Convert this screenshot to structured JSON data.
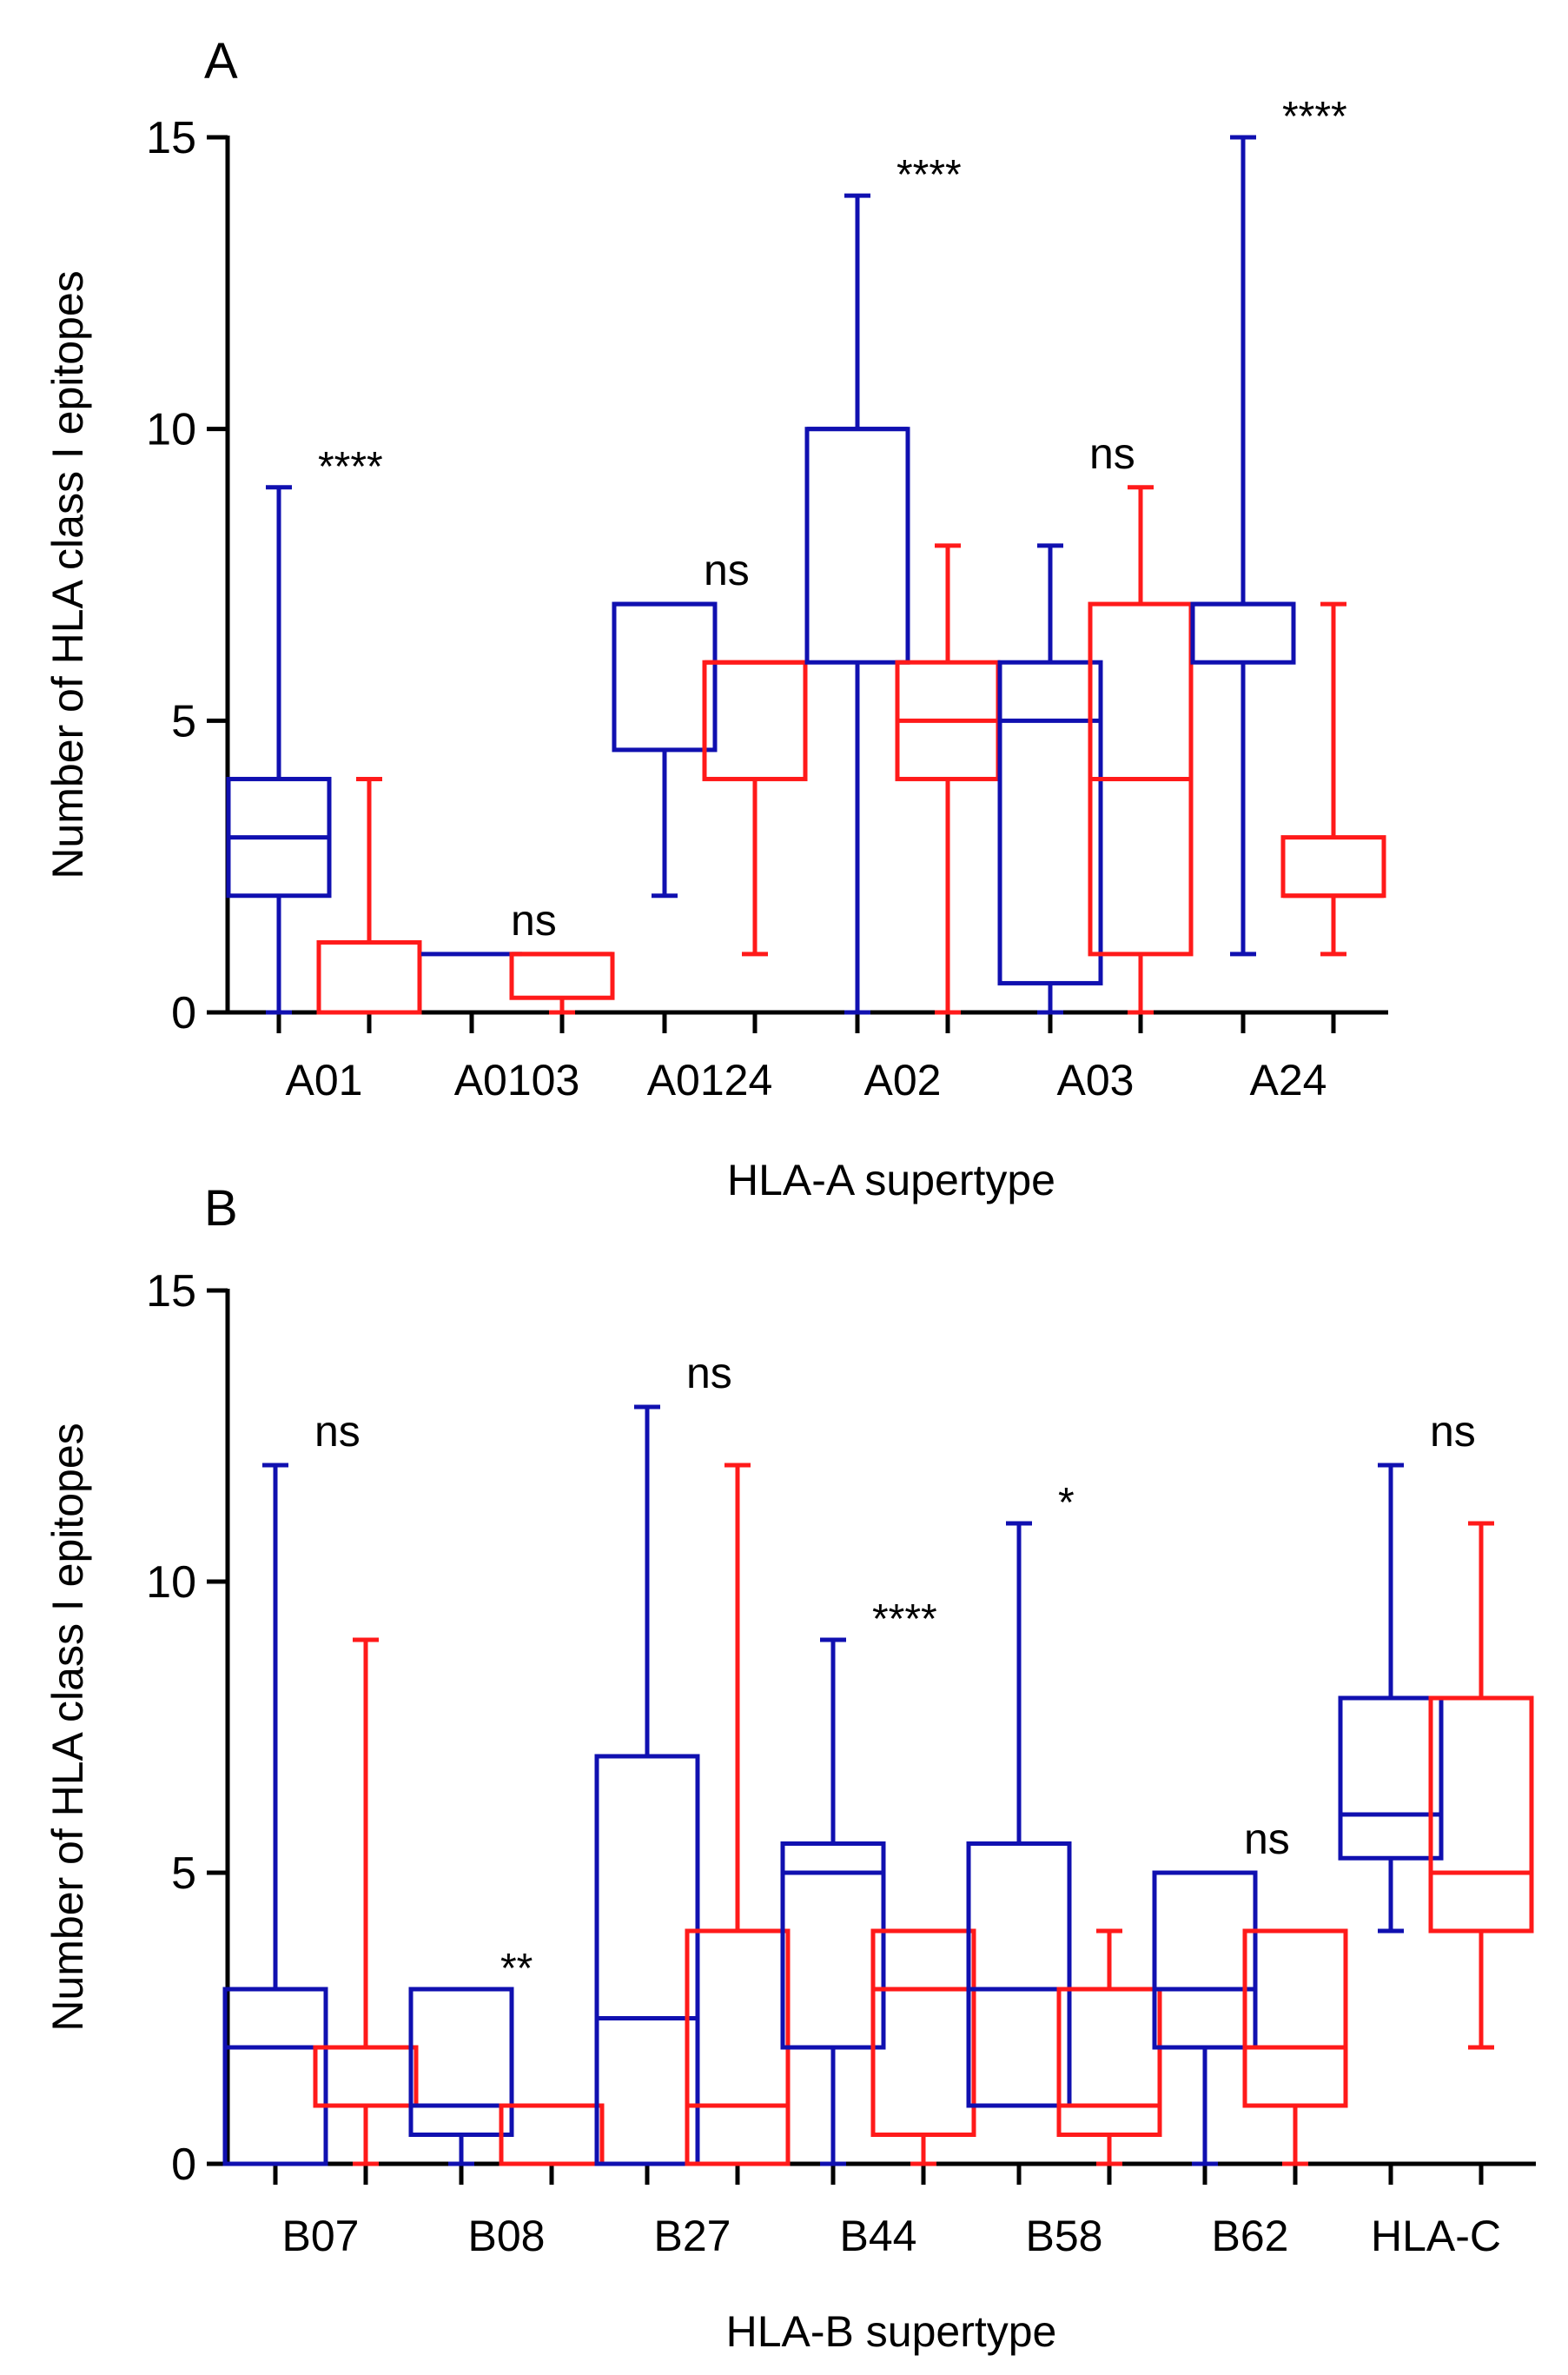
{
  "colors": {
    "group1": "#1010b0",
    "group2": "#ff1a1a",
    "axis": "#000000"
  },
  "chart_data": [
    {
      "type": "box",
      "panel_label": "A",
      "xlabel": "HLA-A supertype",
      "ylabel": "Number of HLA class I epitopes",
      "ylim": [
        0,
        15
      ],
      "yticks": [
        0,
        5,
        10,
        15
      ],
      "categories": [
        "A01",
        "A0103",
        "A0124",
        "A02",
        "A03",
        "A24"
      ],
      "series": [
        {
          "name": "group1",
          "boxes": [
            {
              "min": 0,
              "q1": 2,
              "median": 3,
              "q3": 4,
              "max": 9
            },
            {
              "min": 1,
              "q1": 1,
              "median": 1,
              "q3": 1,
              "max": 1
            },
            {
              "min": 2,
              "q1": 4.5,
              "median": 7,
              "q3": 7,
              "max": 7
            },
            {
              "min": 0,
              "q1": 6,
              "median": 10,
              "q3": 10,
              "max": 14
            },
            {
              "min": 0,
              "q1": 0.5,
              "median": 5,
              "q3": 6,
              "max": 8
            },
            {
              "min": 1,
              "q1": 6,
              "median": 7,
              "q3": 7,
              "max": 15
            }
          ]
        },
        {
          "name": "group2",
          "boxes": [
            {
              "min": 0,
              "q1": 0,
              "median": 0,
              "q3": 1.2,
              "max": 4
            },
            {
              "min": 0,
              "q1": 0.25,
              "median": 1,
              "q3": 1,
              "max": 1
            },
            {
              "min": 1,
              "q1": 4,
              "median": 6,
              "q3": 6,
              "max": 6
            },
            {
              "min": 0,
              "q1": 4,
              "median": 5,
              "q3": 6,
              "max": 8
            },
            {
              "min": 0,
              "q1": 1,
              "median": 4,
              "q3": 7,
              "max": 9
            },
            {
              "min": 1,
              "q1": 2,
              "median": 2,
              "q3": 3,
              "max": 7
            }
          ]
        }
      ],
      "significance": [
        "****",
        "ns",
        "ns",
        "****",
        "ns",
        "****"
      ]
    },
    {
      "type": "box",
      "panel_label": "B",
      "xlabel": "HLA-B supertype",
      "ylabel": "Number of HLA class I epitopes",
      "ylim": [
        0,
        15
      ],
      "yticks": [
        0,
        5,
        10,
        15
      ],
      "categories": [
        "B07",
        "B08",
        "B27",
        "B44",
        "B58",
        "B62",
        "HLA-C"
      ],
      "series": [
        {
          "name": "group1",
          "boxes": [
            {
              "min": 0,
              "q1": 0,
              "median": 2,
              "q3": 3,
              "max": 12
            },
            {
              "min": 0,
              "q1": 0.5,
              "median": 1,
              "q3": 3,
              "max": 3
            },
            {
              "min": 0,
              "q1": 0,
              "median": 2.5,
              "q3": 7,
              "max": 13
            },
            {
              "min": 0,
              "q1": 2,
              "median": 5,
              "q3": 5.5,
              "max": 9
            },
            {
              "min": 1,
              "q1": 1,
              "median": 3,
              "q3": 5.5,
              "max": 11
            },
            {
              "min": 0,
              "q1": 2,
              "median": 3,
              "q3": 5,
              "max": 5
            },
            {
              "min": 4,
              "q1": 5.25,
              "median": 6,
              "q3": 8,
              "max": 12
            }
          ]
        },
        {
          "name": "group2",
          "boxes": [
            {
              "min": 0,
              "q1": 1,
              "median": 2,
              "q3": 2,
              "max": 9
            },
            {
              "min": 0,
              "q1": 0,
              "median": 0,
              "q3": 1,
              "max": 1
            },
            {
              "min": 0,
              "q1": 0,
              "median": 1,
              "q3": 4,
              "max": 12
            },
            {
              "min": 0,
              "q1": 0.5,
              "median": 3,
              "q3": 4,
              "max": 4
            },
            {
              "min": 0,
              "q1": 0.5,
              "median": 1,
              "q3": 3,
              "max": 4
            },
            {
              "min": 0,
              "q1": 1,
              "median": 2,
              "q3": 4,
              "max": 4
            },
            {
              "min": 2,
              "q1": 4,
              "median": 5,
              "q3": 8,
              "max": 11
            }
          ]
        }
      ],
      "significance": [
        "ns",
        "**",
        "ns",
        "****",
        "*",
        "ns",
        "ns"
      ]
    }
  ]
}
